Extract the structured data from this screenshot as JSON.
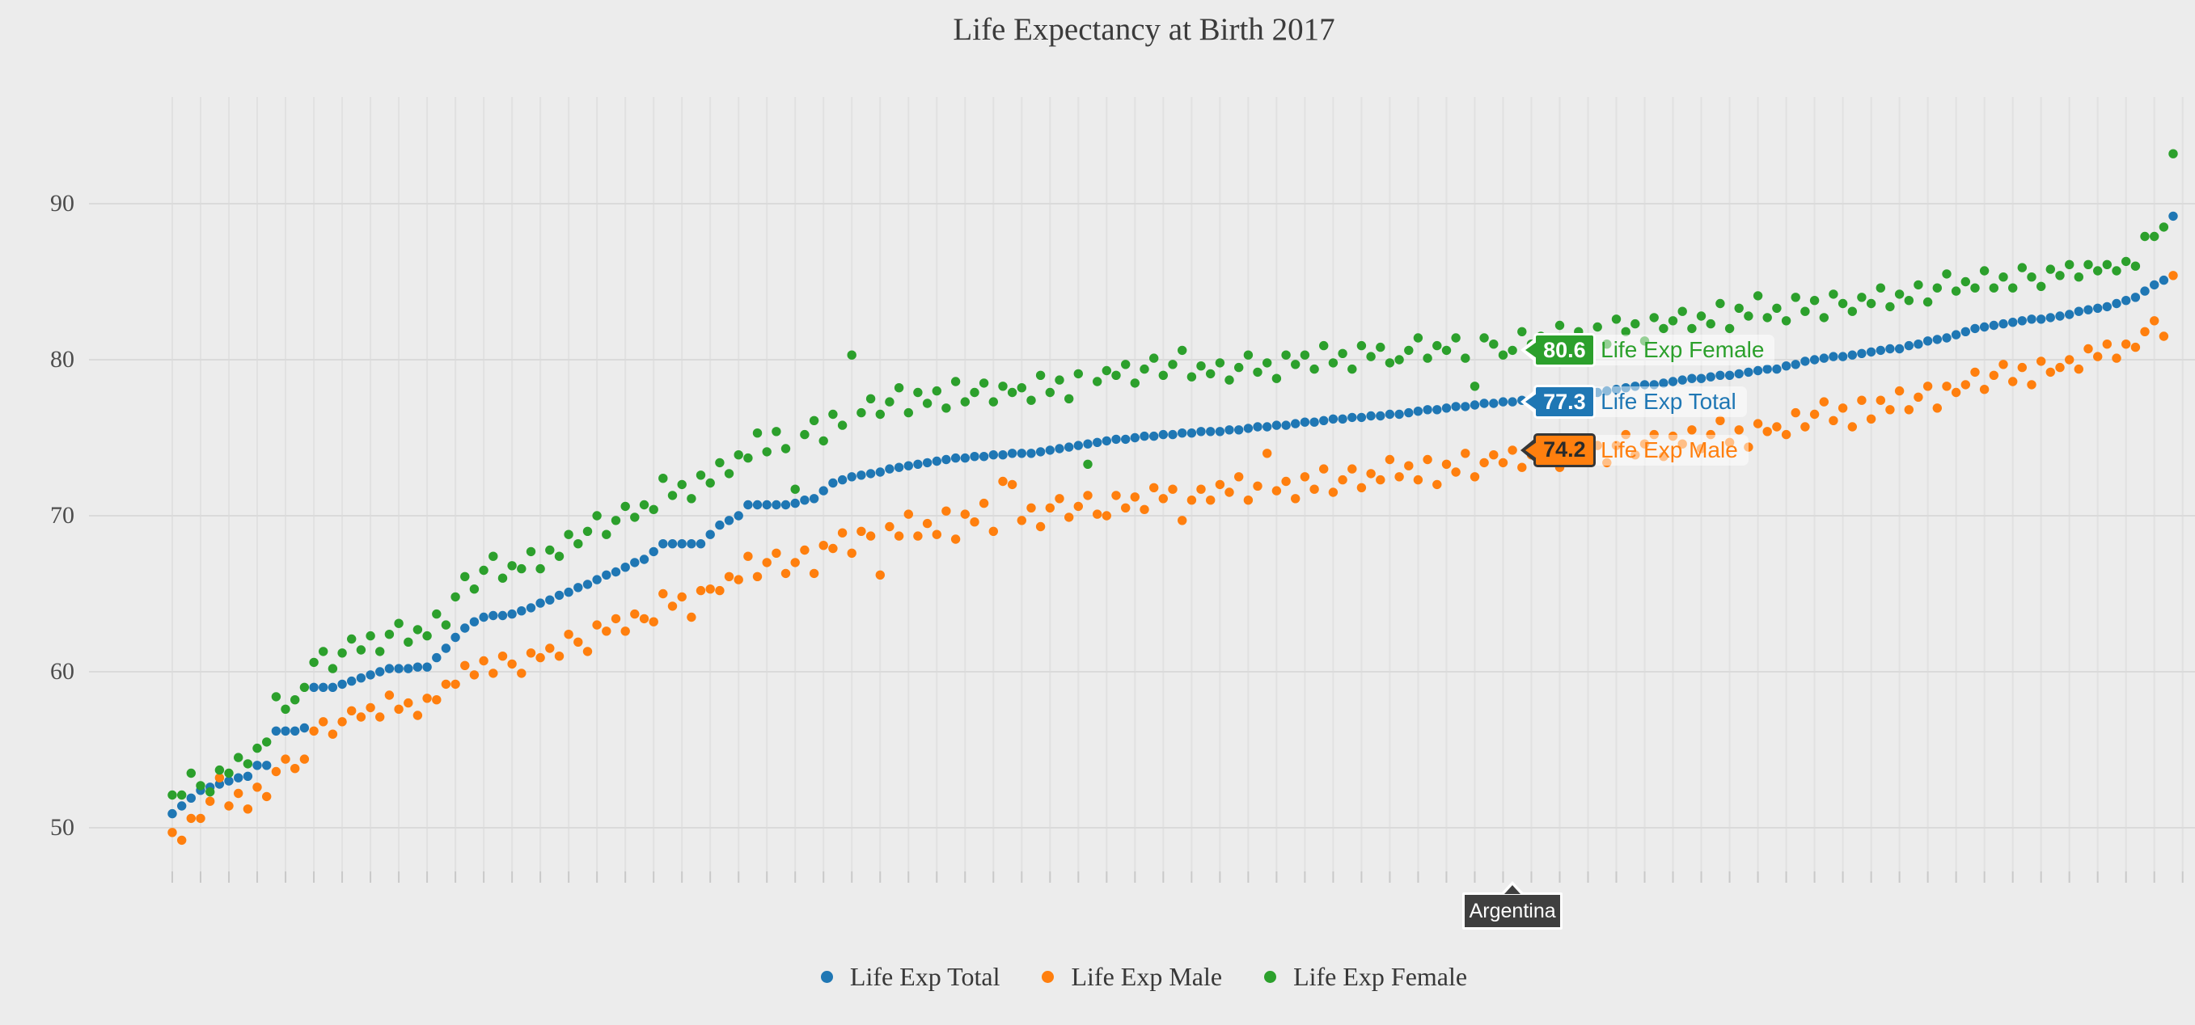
{
  "title": {
    "text": "Life Expectancy at Birth 2017"
  },
  "page": {
    "background": "#ececec",
    "grid_color": "#e1e1e1",
    "hgrid_color": "#dadada",
    "tick_color": "#c9c9c9"
  },
  "chart_data": {
    "type": "scatter",
    "title": "Life Expectancy at Birth 2017",
    "xlabel": "",
    "ylabel": "",
    "x_type": "country-rank-index",
    "n_points": 213,
    "ylim": [
      46,
      97
    ],
    "yticks": [
      50,
      60,
      70,
      80,
      90
    ],
    "grid": true,
    "legend_position": "bottom-center",
    "series": [
      {
        "name": "Life Exp Total",
        "color": "#1f77b4",
        "values": [
          50.9,
          51.4,
          51.9,
          52.4,
          52.6,
          52.8,
          53.0,
          53.2,
          53.3,
          54.0,
          54.0,
          56.2,
          56.2,
          56.2,
          56.4,
          59.0,
          59.0,
          59.0,
          59.2,
          59.4,
          59.6,
          59.8,
          60.0,
          60.2,
          60.2,
          60.2,
          60.3,
          60.3,
          60.9,
          61.5,
          62.2,
          62.8,
          63.2,
          63.5,
          63.6,
          63.6,
          63.7,
          63.9,
          64.1,
          64.4,
          64.6,
          64.9,
          65.1,
          65.4,
          65.6,
          65.9,
          66.2,
          66.4,
          66.7,
          67.0,
          67.2,
          67.7,
          68.2,
          68.2,
          68.2,
          68.2,
          68.2,
          68.8,
          69.4,
          69.7,
          70.0,
          70.7,
          70.7,
          70.7,
          70.7,
          70.7,
          70.8,
          71.0,
          71.1,
          71.6,
          72.1,
          72.3,
          72.5,
          72.6,
          72.7,
          72.8,
          73.0,
          73.1,
          73.2,
          73.3,
          73.4,
          73.5,
          73.6,
          73.7,
          73.7,
          73.8,
          73.8,
          73.9,
          73.9,
          74.0,
          74.0,
          74.0,
          74.1,
          74.2,
          74.3,
          74.4,
          74.5,
          74.6,
          74.7,
          74.8,
          74.9,
          74.9,
          75.0,
          75.1,
          75.1,
          75.2,
          75.2,
          75.3,
          75.3,
          75.4,
          75.4,
          75.4,
          75.5,
          75.5,
          75.6,
          75.7,
          75.7,
          75.8,
          75.8,
          75.9,
          76.0,
          76.0,
          76.1,
          76.2,
          76.2,
          76.3,
          76.3,
          76.4,
          76.4,
          76.5,
          76.5,
          76.6,
          76.7,
          76.8,
          76.8,
          76.9,
          77.0,
          77.0,
          77.1,
          77.2,
          77.2,
          77.3,
          77.3,
          77.4,
          77.4,
          77.5,
          77.5,
          77.6,
          77.7,
          77.7,
          77.8,
          77.9,
          78.0,
          78.1,
          78.2,
          78.3,
          78.4,
          78.4,
          78.5,
          78.6,
          78.7,
          78.8,
          78.8,
          78.9,
          79.0,
          79.0,
          79.1,
          79.2,
          79.3,
          79.4,
          79.4,
          79.6,
          79.7,
          79.9,
          80.0,
          80.1,
          80.2,
          80.2,
          80.3,
          80.4,
          80.5,
          80.6,
          80.7,
          80.7,
          80.9,
          81.0,
          81.2,
          81.3,
          81.4,
          81.6,
          81.8,
          82.0,
          82.1,
          82.2,
          82.3,
          82.4,
          82.5,
          82.6,
          82.6,
          82.7,
          82.8,
          82.9,
          83.1,
          83.2,
          83.3,
          83.4,
          83.6,
          83.8,
          84.0,
          84.4,
          84.8,
          85.1,
          89.2
        ]
      },
      {
        "name": "Life Exp Male",
        "color": "#ff7f0e",
        "values": [
          49.7,
          49.2,
          50.6,
          50.6,
          51.7,
          53.2,
          51.4,
          52.2,
          51.2,
          52.6,
          52.0,
          53.6,
          54.4,
          53.8,
          54.4,
          56.2,
          56.8,
          56.0,
          56.8,
          57.5,
          57.1,
          57.7,
          57.1,
          58.5,
          57.6,
          58.0,
          57.2,
          58.3,
          58.2,
          59.2,
          59.2,
          60.4,
          59.8,
          60.7,
          59.9,
          61.0,
          60.5,
          59.9,
          61.2,
          60.9,
          61.5,
          61.0,
          62.4,
          61.9,
          61.3,
          63.0,
          62.6,
          63.4,
          62.6,
          63.7,
          63.4,
          63.2,
          65.0,
          64.2,
          64.8,
          63.5,
          65.2,
          65.3,
          65.2,
          66.1,
          65.9,
          67.4,
          66.1,
          67.0,
          67.6,
          66.3,
          67.0,
          67.8,
          66.3,
          68.1,
          67.9,
          68.9,
          67.6,
          69.0,
          68.7,
          66.2,
          69.3,
          68.7,
          70.1,
          68.7,
          69.5,
          68.8,
          70.3,
          68.5,
          70.1,
          69.6,
          70.8,
          69.0,
          72.2,
          72.0,
          69.7,
          70.5,
          69.3,
          70.5,
          71.1,
          69.9,
          70.6,
          71.3,
          70.1,
          70.0,
          71.3,
          70.5,
          71.2,
          70.4,
          71.8,
          71.1,
          71.7,
          69.7,
          71.0,
          71.7,
          71.0,
          72.0,
          71.5,
          72.5,
          71.0,
          71.9,
          74.0,
          71.6,
          72.2,
          71.1,
          72.5,
          71.7,
          73.0,
          71.5,
          72.3,
          73.0,
          71.8,
          72.7,
          72.3,
          73.6,
          72.5,
          73.2,
          72.3,
          73.6,
          72.0,
          73.3,
          72.8,
          74.0,
          72.5,
          73.4,
          73.9,
          73.4,
          74.2,
          73.1,
          73.9,
          73.4,
          74.6,
          73.1,
          74.0,
          74.5,
          73.6,
          74.5,
          73.4,
          74.5,
          75.2,
          73.9,
          74.6,
          75.2,
          73.8,
          75.1,
          74.6,
          75.5,
          74.3,
          75.2,
          76.1,
          74.7,
          75.5,
          74.4,
          75.9,
          75.4,
          75.7,
          75.2,
          76.6,
          75.7,
          76.5,
          77.3,
          76.1,
          76.9,
          75.7,
          77.4,
          76.2,
          77.4,
          76.8,
          78.0,
          76.8,
          77.6,
          78.3,
          76.9,
          78.3,
          77.9,
          78.4,
          79.2,
          78.1,
          79.0,
          79.7,
          78.6,
          79.5,
          78.4,
          79.9,
          79.2,
          79.5,
          80.0,
          79.4,
          80.7,
          80.2,
          81.0,
          80.1,
          81.0,
          80.8,
          81.8,
          82.5,
          81.5,
          85.4
        ]
      },
      {
        "name": "Life Exp Female",
        "color": "#2ca02c",
        "values": [
          52.1,
          52.1,
          53.5,
          52.7,
          52.3,
          53.7,
          53.5,
          54.5,
          54.1,
          55.1,
          55.5,
          58.4,
          57.6,
          58.2,
          59.0,
          60.6,
          61.3,
          60.2,
          61.2,
          62.1,
          61.4,
          62.3,
          61.3,
          62.4,
          63.1,
          61.9,
          62.7,
          62.3,
          63.7,
          63.0,
          64.8,
          66.1,
          65.3,
          66.5,
          67.4,
          66.0,
          66.8,
          66.6,
          67.7,
          66.6,
          67.8,
          67.4,
          68.8,
          68.2,
          69.0,
          70.0,
          68.8,
          69.7,
          70.6,
          69.9,
          70.7,
          70.4,
          72.4,
          71.3,
          72.0,
          71.1,
          72.6,
          72.1,
          73.4,
          72.7,
          73.9,
          73.7,
          75.3,
          74.1,
          75.4,
          74.3,
          71.7,
          75.2,
          76.1,
          74.8,
          76.5,
          75.8,
          80.3,
          76.6,
          77.5,
          76.5,
          77.3,
          78.2,
          76.6,
          77.9,
          77.2,
          78.0,
          76.9,
          78.6,
          77.3,
          77.9,
          78.5,
          77.3,
          78.3,
          77.9,
          78.2,
          77.4,
          79.0,
          77.9,
          78.7,
          77.5,
          79.1,
          73.3,
          78.6,
          79.3,
          79.0,
          79.7,
          78.5,
          79.4,
          80.1,
          79.0,
          79.7,
          80.6,
          78.9,
          79.6,
          79.1,
          79.8,
          78.7,
          79.5,
          80.3,
          79.2,
          79.8,
          78.8,
          80.3,
          79.7,
          80.3,
          79.4,
          80.9,
          79.8,
          80.4,
          79.4,
          80.9,
          80.2,
          80.8,
          79.8,
          80.0,
          80.6,
          81.4,
          80.1,
          80.9,
          80.6,
          81.4,
          80.1,
          78.3,
          81.4,
          81.0,
          80.3,
          80.6,
          81.8,
          81.0,
          81.5,
          80.7,
          82.2,
          81.1,
          81.8,
          81.1,
          82.1,
          81.0,
          82.6,
          81.8,
          82.3,
          81.2,
          82.7,
          82.0,
          82.5,
          83.1,
          82.0,
          82.8,
          82.3,
          83.6,
          82.0,
          83.3,
          82.8,
          84.1,
          82.7,
          83.3,
          82.5,
          84.0,
          83.1,
          83.8,
          82.7,
          84.2,
          83.6,
          83.1,
          84.0,
          83.6,
          84.6,
          83.4,
          84.2,
          83.8,
          84.8,
          83.7,
          84.6,
          85.5,
          84.4,
          85.0,
          84.6,
          85.7,
          84.6,
          85.3,
          84.6,
          85.9,
          85.3,
          84.7,
          85.8,
          85.4,
          86.1,
          85.3,
          86.1,
          85.7,
          86.1,
          85.7,
          86.3,
          86.0,
          87.9,
          87.9,
          88.5,
          93.2
        ]
      }
    ],
    "legend": [
      "Life Exp Total",
      "Life Exp Male",
      "Life Exp Female"
    ],
    "highlight": {
      "country": "Argentina",
      "index": 142,
      "badges": [
        {
          "series": "Life Exp Female",
          "value": "80.6",
          "numeric": 80.6,
          "color": "#2ca02c",
          "text_color": "#ffffff",
          "border_color": "#ffffff"
        },
        {
          "series": "Life Exp Total",
          "value": "77.3",
          "numeric": 77.3,
          "color": "#1f77b4",
          "text_color": "#ffffff",
          "border_color": "#ffffff"
        },
        {
          "series": "Life Exp Male",
          "value": "74.2",
          "numeric": 74.2,
          "color": "#ff7f0e",
          "text_color": "#2a2a2a",
          "border_color": "#363636"
        }
      ]
    }
  }
}
